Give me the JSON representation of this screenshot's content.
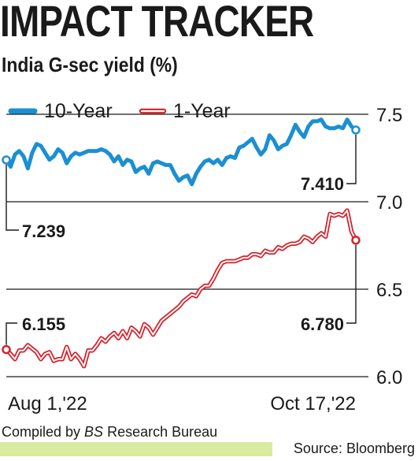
{
  "title": "IMPACT TRACKER",
  "subtitle": "India G-sec yield (%)",
  "footer": {
    "compiled_prefix": "Compiled by ",
    "compiled_bs": "BS",
    "compiled_suffix": " Research Bureau",
    "source": "Source: Bloomberg"
  },
  "colors": {
    "ten_year": "#1b8fd2",
    "one_year": "#d6212a",
    "grid": "#1a1a1a",
    "footer_band": "#d9eaa1"
  },
  "chart_data": {
    "type": "line",
    "title": "India G-sec yield (%)",
    "ylim": [
      6.0,
      7.5
    ],
    "y_ticks": [
      "7.5",
      "7.0",
      "6.5",
      "6.0"
    ],
    "y_tick_values": [
      7.5,
      7.0,
      6.5,
      6.0
    ],
    "x_ticks": [
      "Aug 1,'22",
      "Oct 17,'22"
    ],
    "legend_position": "top",
    "grid": true,
    "series": [
      {
        "name": "10-Year",
        "start_label": "7.239",
        "end_label": "7.410",
        "values": [
          7.239,
          7.2,
          7.27,
          7.29,
          7.26,
          7.19,
          7.28,
          7.33,
          7.32,
          7.28,
          7.24,
          7.26,
          7.3,
          7.28,
          7.22,
          7.26,
          7.28,
          7.27,
          7.28,
          7.29,
          7.29,
          7.29,
          7.3,
          7.29,
          7.27,
          7.23,
          7.26,
          7.21,
          7.24,
          7.23,
          7.17,
          7.19,
          7.2,
          7.16,
          7.22,
          7.23,
          7.22,
          7.21,
          7.21,
          7.16,
          7.12,
          7.14,
          7.15,
          7.1,
          7.16,
          7.2,
          7.23,
          7.24,
          7.22,
          7.24,
          7.21,
          7.25,
          7.26,
          7.25,
          7.31,
          7.32,
          7.34,
          7.36,
          7.31,
          7.27,
          7.3,
          7.38,
          7.35,
          7.3,
          7.32,
          7.33,
          7.38,
          7.44,
          7.4,
          7.37,
          7.43,
          7.46,
          7.46,
          7.47,
          7.43,
          7.42,
          7.42,
          7.43,
          7.42,
          7.47,
          7.43,
          7.41
        ]
      },
      {
        "name": "1-Year",
        "start_label": "6.155",
        "end_label": "6.780",
        "values": [
          6.155,
          6.13,
          6.1,
          6.15,
          6.15,
          6.18,
          6.16,
          6.14,
          6.1,
          6.13,
          6.14,
          6.09,
          6.1,
          6.1,
          6.17,
          6.1,
          6.13,
          6.1,
          6.06,
          6.15,
          6.15,
          6.18,
          6.22,
          6.2,
          6.23,
          6.25,
          6.22,
          6.26,
          6.22,
          6.28,
          6.26,
          6.23,
          6.3,
          6.28,
          6.24,
          6.28,
          6.32,
          6.34,
          6.36,
          6.38,
          6.4,
          6.43,
          6.45,
          6.47,
          6.46,
          6.5,
          6.52,
          6.52,
          6.56,
          6.61,
          6.65,
          6.66,
          6.66,
          6.66,
          6.67,
          6.68,
          6.68,
          6.7,
          6.7,
          6.69,
          6.72,
          6.71,
          6.71,
          6.74,
          6.73,
          6.75,
          6.76,
          6.76,
          6.77,
          6.8,
          6.79,
          6.77,
          6.8,
          6.82,
          6.8,
          6.93,
          6.92,
          6.93,
          6.92,
          6.95,
          6.83,
          6.78
        ]
      }
    ]
  }
}
